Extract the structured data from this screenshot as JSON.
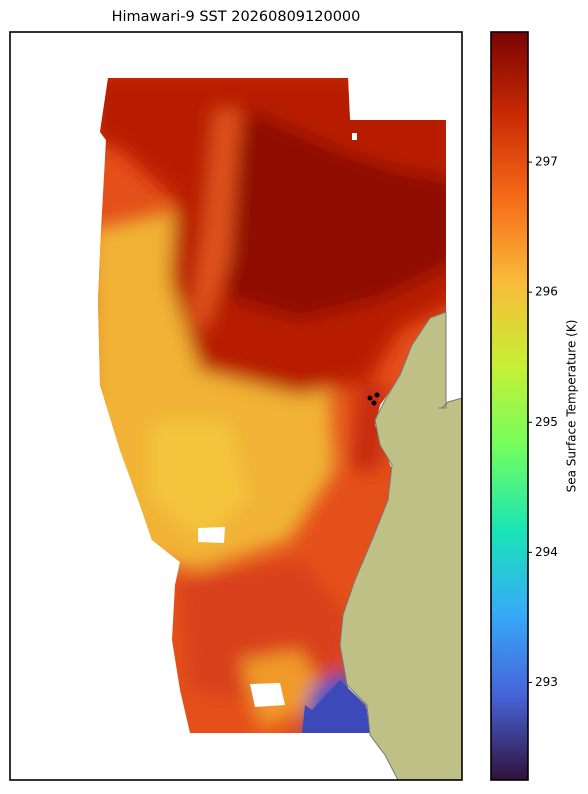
{
  "chart_data": {
    "type": "heatmap",
    "title": "Himawari-9 SST 20260809120000",
    "colorbar_label": "Sea Surface Temperature (K)",
    "colormap": "turbo",
    "clim": [
      292.25,
      298.0
    ],
    "cticks": [
      293,
      294,
      295,
      296,
      297
    ]
  }
}
